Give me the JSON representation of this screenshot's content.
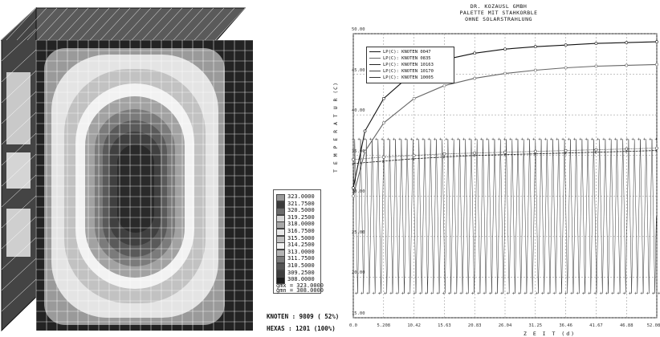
{
  "legend": {
    "items": [
      {
        "label": "323.0000",
        "color": "#9a9a9a"
      },
      {
        "label": "321.7500",
        "color": "#3a3a3a"
      },
      {
        "label": "320.5000",
        "color": "#6a6a6a"
      },
      {
        "label": "319.2500",
        "color": "#d8d8d8"
      },
      {
        "label": "318.0000",
        "color": "#a8a8a8"
      },
      {
        "label": "316.7500",
        "color": "#e8e8e8"
      },
      {
        "label": "315.5000",
        "color": "#c0c0c0"
      },
      {
        "label": "314.2500",
        "color": "#f3f3f3"
      },
      {
        "label": "313.0000",
        "color": "#b4b4b4"
      },
      {
        "label": "311.7500",
        "color": "#7a7a7a"
      },
      {
        "label": "310.5000",
        "color": "#555555"
      },
      {
        "label": "309.2500",
        "color": "#3e3e3e"
      },
      {
        "label": "308.0000",
        "color": "#1e1e1e"
      }
    ],
    "max_label": "gmx = 323.0000",
    "min_label": "gmn = 308.0000"
  },
  "stats": {
    "knoten": "KNOTEN  :   9809  ( 52%)",
    "hexas": "HEXAS   :   1201 (100%)"
  },
  "chart_data": {
    "type": "line",
    "title": [
      "DR. KOZAUSL GMBH",
      "PALETTE MIT STAHKORBLE",
      "OHNE SOLARSTRAHLUNG"
    ],
    "xlabel": "Z E I T (d)",
    "ylabel": "T E M P E R A T U R (C)",
    "x_ticks": [
      "0.0",
      "5.208",
      "10.42",
      "15.63",
      "20.83",
      "26.04",
      "31.25",
      "36.46",
      "41.67",
      "46.88",
      "52.08"
    ],
    "y_ticks": [
      "50.00",
      "45.00",
      "40.00",
      "35.00",
      "30.00",
      "25.00",
      "20.00",
      "15.00"
    ],
    "xlim": [
      0,
      52.08
    ],
    "ylim": [
      15,
      50
    ],
    "series": [
      {
        "name": "LP(C): KNOTEN 0047",
        "values": [
          [
            0,
            31
          ],
          [
            2,
            38
          ],
          [
            5.208,
            42
          ],
          [
            10.42,
            45.3
          ],
          [
            15.63,
            46.8
          ],
          [
            20.83,
            47.6
          ],
          [
            26.04,
            48.1
          ],
          [
            31.25,
            48.4
          ],
          [
            36.46,
            48.6
          ],
          [
            41.67,
            48.8
          ],
          [
            46.88,
            48.9
          ],
          [
            52.08,
            49.0
          ]
        ]
      },
      {
        "name": "LP(C): KNOTEN 0835",
        "values": [
          [
            0,
            30
          ],
          [
            2,
            35.5
          ],
          [
            5.208,
            39
          ],
          [
            10.42,
            42
          ],
          [
            15.63,
            43.6
          ],
          [
            20.83,
            44.5
          ],
          [
            26.04,
            45.1
          ],
          [
            31.25,
            45.5
          ],
          [
            36.46,
            45.8
          ],
          [
            41.67,
            46
          ],
          [
            46.88,
            46.1
          ],
          [
            52.08,
            46.2
          ]
        ]
      },
      {
        "name": "LP(C): KNOTEN 10163",
        "values": [
          [
            0,
            34
          ],
          [
            5.208,
            34.3
          ],
          [
            10.42,
            34.6
          ],
          [
            15.63,
            34.8
          ],
          [
            20.83,
            35
          ],
          [
            26.04,
            35.1
          ],
          [
            31.25,
            35.2
          ],
          [
            36.46,
            35.3
          ],
          [
            41.67,
            35.4
          ],
          [
            46.88,
            35.5
          ],
          [
            52.08,
            35.6
          ]
        ]
      },
      {
        "name": "LP(C): KNOTEN 10170",
        "values": [
          [
            0,
            34.5
          ],
          [
            5.208,
            34.8
          ],
          [
            10.42,
            35
          ],
          [
            15.63,
            35.2
          ],
          [
            20.83,
            35.3
          ],
          [
            26.04,
            35.4
          ],
          [
            31.25,
            35.5
          ],
          [
            36.46,
            35.6
          ],
          [
            41.67,
            35.7
          ],
          [
            46.88,
            35.8
          ],
          [
            52.08,
            35.9
          ]
        ]
      },
      {
        "name": "LP(C): KNOTEN 10005",
        "oscillation": {
          "low": 18,
          "high": 37,
          "period_days": 1.0
        }
      }
    ],
    "grid": true
  }
}
